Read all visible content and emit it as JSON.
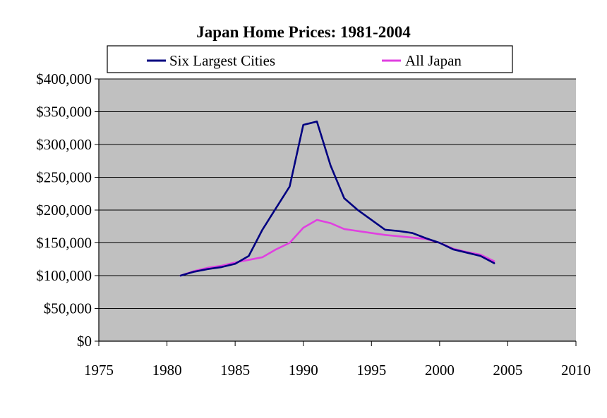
{
  "chart_data": {
    "type": "line",
    "title": "Japan Home Prices: 1981-2004",
    "xlabel": "",
    "ylabel": "",
    "xlim": [
      1975,
      2010
    ],
    "ylim": [
      0,
      400000
    ],
    "x_ticks": [
      1975,
      1980,
      1985,
      1990,
      1995,
      2000,
      2005,
      2010
    ],
    "x_tick_labels": [
      "1975",
      "1980",
      "1985",
      "1990",
      "1995",
      "2000",
      "2005",
      "2010"
    ],
    "y_ticks": [
      0,
      50000,
      100000,
      150000,
      200000,
      250000,
      300000,
      350000,
      400000
    ],
    "y_tick_labels": [
      "$0",
      "$50,000",
      "$100,000",
      "$150,000",
      "$200,000",
      "$250,000",
      "$300,000",
      "$350,000",
      "$400,000"
    ],
    "grid": true,
    "legend_position": "top",
    "plot_background": "#c0c0c0",
    "series": [
      {
        "name": "Six Largest Cities",
        "color": "#000080",
        "points": [
          [
            1981,
            100000
          ],
          [
            1982,
            106000
          ],
          [
            1983,
            110000
          ],
          [
            1984,
            113000
          ],
          [
            1985,
            118000
          ],
          [
            1986,
            130000
          ],
          [
            1987,
            170000
          ],
          [
            1988,
            203000
          ],
          [
            1989,
            236000
          ],
          [
            1990,
            330000
          ],
          [
            1991,
            335000
          ],
          [
            1992,
            268000
          ],
          [
            1993,
            218000
          ],
          [
            1994,
            200000
          ],
          [
            1995,
            185000
          ],
          [
            1996,
            170000
          ],
          [
            1997,
            168000
          ],
          [
            1998,
            165000
          ],
          [
            1999,
            157000
          ],
          [
            2000,
            150000
          ],
          [
            2001,
            140000
          ],
          [
            2002,
            135000
          ],
          [
            2003,
            130000
          ],
          [
            2004,
            119000
          ]
        ]
      },
      {
        "name": "All Japan",
        "color": "#e040e0",
        "points": [
          [
            1981,
            100000
          ],
          [
            1982,
            107000
          ],
          [
            1983,
            112000
          ],
          [
            1984,
            115000
          ],
          [
            1985,
            120000
          ],
          [
            1986,
            124000
          ],
          [
            1987,
            128000
          ],
          [
            1988,
            140000
          ],
          [
            1989,
            150000
          ],
          [
            1990,
            173000
          ],
          [
            1991,
            185000
          ],
          [
            1992,
            180000
          ],
          [
            1993,
            171000
          ],
          [
            1994,
            168000
          ],
          [
            1995,
            165000
          ],
          [
            1996,
            162000
          ],
          [
            1997,
            160000
          ],
          [
            1998,
            158000
          ],
          [
            1999,
            156000
          ],
          [
            2000,
            150000
          ],
          [
            2001,
            141000
          ],
          [
            2002,
            136000
          ],
          [
            2003,
            132000
          ],
          [
            2004,
            122000
          ]
        ]
      }
    ]
  }
}
